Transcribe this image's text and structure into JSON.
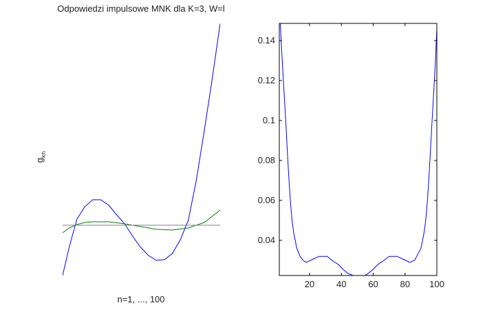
{
  "chart_data": [
    {
      "type": "line",
      "title": "Odpowiedzi impulsowe MNK dla K=3, W=l",
      "xlabel": "n=1, ..., 100",
      "ylabel": "g",
      "ylabel_subscript": "kn",
      "axes_visible": false,
      "xlim": [
        1,
        100
      ],
      "ylim": [
        -0.73,
        2.93
      ],
      "series": [
        {
          "name": "blue",
          "color": "#0000ff",
          "x": [
            1,
            5,
            10,
            15,
            20,
            25,
            30,
            35,
            40,
            45,
            50,
            55,
            60,
            65,
            70,
            75,
            80,
            85,
            90,
            95,
            100
          ],
          "values": [
            -0.73,
            -0.33,
            0.09,
            0.27,
            0.37,
            0.37,
            0.29,
            0.15,
            0.02,
            -0.16,
            -0.32,
            -0.44,
            -0.51,
            -0.5,
            -0.41,
            -0.21,
            0.07,
            0.65,
            1.37,
            2.12,
            2.93
          ]
        },
        {
          "name": "green",
          "color": "#008000",
          "x": [
            1,
            5,
            10,
            15,
            20,
            30,
            40,
            50,
            60,
            70,
            80,
            90,
            100
          ],
          "values": [
            -0.11,
            -0.04,
            0.01,
            0.04,
            0.05,
            0.05,
            0.02,
            -0.02,
            -0.06,
            -0.07,
            -0.04,
            0.04,
            0.22
          ]
        },
        {
          "name": "gray",
          "color": "#808080",
          "x": [
            1,
            100
          ],
          "values": [
            0,
            0
          ]
        }
      ]
    },
    {
      "type": "line",
      "title": "",
      "xlabel": "",
      "ylabel": "",
      "xlim": [
        1,
        100
      ],
      "ylim": [
        0.0224,
        0.1486
      ],
      "xticks": [
        20,
        40,
        60,
        80,
        100
      ],
      "xtick_labels": [
        "20",
        "40",
        "60",
        "80",
        "100"
      ],
      "yticks": [
        0.04,
        0.06,
        0.08,
        0.1,
        0.12,
        0.14
      ],
      "ytick_labels": [
        "0.04",
        "0.06",
        "0.08",
        "0.1",
        "0.12",
        "0.14"
      ],
      "grid": false,
      "series": [
        {
          "name": "blue",
          "color": "#0000ff",
          "x": [
            1,
            2,
            3,
            4,
            5,
            6,
            7,
            8,
            9,
            10,
            12,
            14,
            16,
            18,
            22,
            26,
            31,
            35,
            38,
            41,
            44,
            47,
            49,
            51,
            53,
            55,
            57,
            60,
            63,
            66,
            70,
            75,
            79,
            83,
            86,
            88,
            90,
            92,
            93,
            94,
            95,
            96,
            97,
            98,
            99,
            100
          ],
          "values": [
            0.16,
            0.142,
            0.128,
            0.114,
            0.1,
            0.085,
            0.071,
            0.059,
            0.05,
            0.044,
            0.036,
            0.032,
            0.03,
            0.029,
            0.0305,
            0.032,
            0.032,
            0.0295,
            0.028,
            0.0255,
            0.0235,
            0.0225,
            0.0223,
            0.0222,
            0.0223,
            0.0225,
            0.0235,
            0.0255,
            0.028,
            0.0295,
            0.032,
            0.032,
            0.0305,
            0.029,
            0.03,
            0.033,
            0.036,
            0.044,
            0.05,
            0.059,
            0.071,
            0.085,
            0.1,
            0.114,
            0.128,
            0.146
          ]
        }
      ]
    }
  ]
}
